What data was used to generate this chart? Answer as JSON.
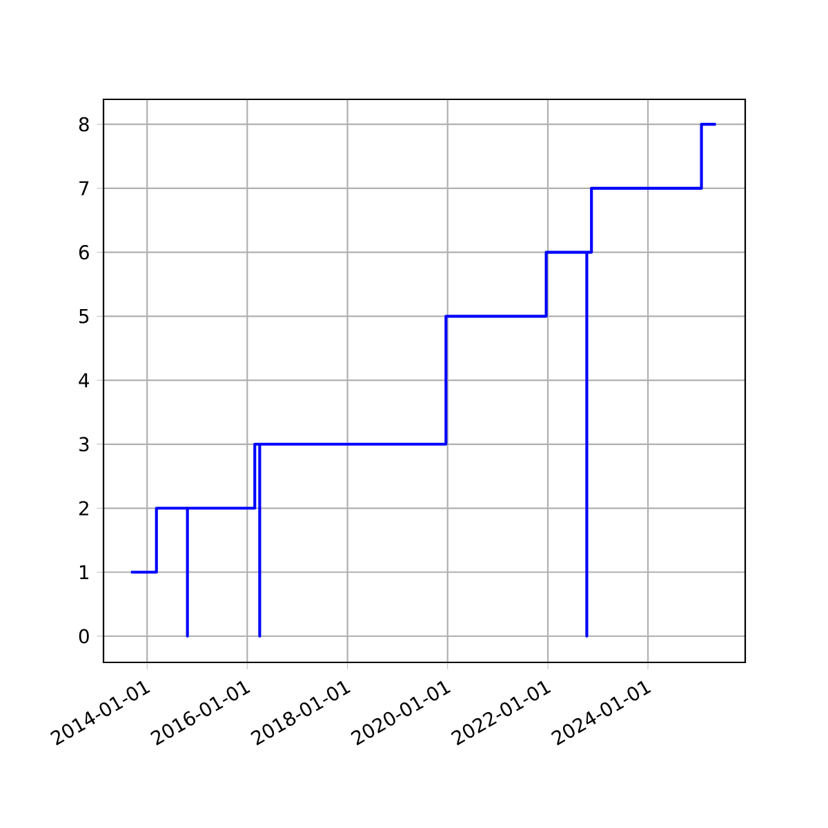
{
  "chart_data": {
    "type": "step",
    "x": [
      "2013-09-05",
      "2014-03-10",
      "2014-10-22",
      "2014-10-22",
      "2016-02-25",
      "2016-04-01",
      "2016-04-01",
      "2019-12-20",
      "2021-12-20",
      "2022-10-12",
      "2022-10-12",
      "2022-11-15",
      "2025-01-25",
      "2025-05-10"
    ],
    "series": [
      {
        "color": "#0000ff",
        "values": [
          1,
          2,
          0,
          2,
          3,
          0,
          3,
          5,
          6,
          0,
          6,
          7,
          8,
          8
        ]
      }
    ],
    "xlim": [
      "2013-02-17",
      "2025-12-10"
    ],
    "xticks": [
      "2014-01-01",
      "2016-01-01",
      "2018-01-01",
      "2020-01-01",
      "2022-01-01",
      "2024-01-01"
    ],
    "ylim": [
      -0.41,
      8.39
    ],
    "yticks": [
      0,
      1,
      2,
      3,
      4,
      5,
      6,
      7,
      8
    ],
    "grid": true
  }
}
